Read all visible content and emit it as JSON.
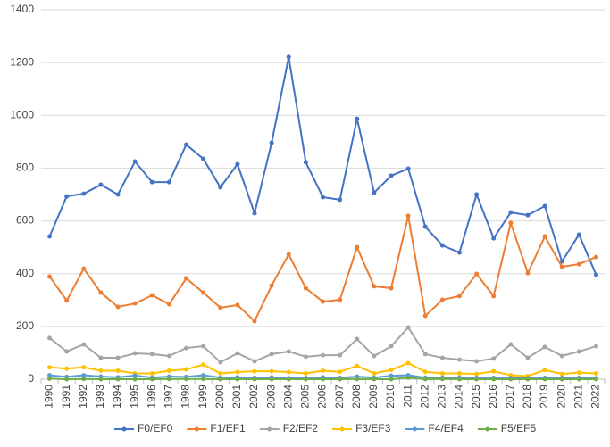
{
  "chart_data": {
    "type": "line",
    "categories": [
      "1990",
      "1991",
      "1992",
      "1993",
      "1994",
      "1995",
      "1996",
      "1997",
      "1998",
      "1999",
      "2000",
      "2001",
      "2002",
      "2003",
      "2004",
      "2005",
      "2006",
      "2007",
      "2008",
      "2009",
      "2010",
      "2011",
      "2012",
      "2013",
      "2014",
      "2015",
      "2016",
      "2017",
      "2018",
      "2019",
      "2020",
      "2021",
      "2022"
    ],
    "series": [
      {
        "name": "F0/EF0",
        "color": "#4472c4",
        "values": [
          541,
          693,
          703,
          737,
          700,
          825,
          747,
          747,
          889,
          835,
          727,
          815,
          629,
          896,
          1221,
          822,
          690,
          680,
          987,
          707,
          771,
          798,
          578,
          507,
          480,
          700,
          534,
          632,
          622,
          656,
          446,
          548,
          396
        ]
      },
      {
        "name": "F1/EF1",
        "color": "#ed7d31",
        "values": [
          389,
          298,
          419,
          328,
          274,
          287,
          318,
          284,
          382,
          328,
          271,
          281,
          220,
          355,
          473,
          345,
          294,
          301,
          500,
          352,
          345,
          619,
          240,
          301,
          315,
          399,
          315,
          592,
          402,
          541,
          426,
          436,
          463
        ]
      },
      {
        "name": "F2/EF2",
        "color": "#a5a5a5",
        "values": [
          156,
          105,
          132,
          81,
          81,
          98,
          95,
          88,
          118,
          125,
          64,
          98,
          68,
          95,
          105,
          85,
          91,
          91,
          152,
          88,
          125,
          196,
          95,
          81,
          74,
          68,
          78,
          132,
          81,
          122,
          88,
          105,
          125
        ]
      },
      {
        "name": "F3/EF3",
        "color": "#ffc000",
        "values": [
          45,
          40,
          45,
          32,
          32,
          22,
          22,
          32,
          37,
          55,
          22,
          27,
          30,
          30,
          27,
          22,
          32,
          28,
          50,
          22,
          35,
          61,
          28,
          22,
          22,
          20,
          30,
          15,
          12,
          35,
          20,
          25,
          22
        ]
      },
      {
        "name": "F4/EF4",
        "color": "#5b9bd5",
        "values": [
          15,
          9,
          15,
          10,
          7,
          14,
          6,
          10,
          9,
          15,
          6,
          7,
          6,
          7,
          4,
          5,
          7,
          5,
          10,
          6,
          13,
          15,
          6,
          6,
          6,
          5,
          5,
          5,
          4,
          5,
          5,
          5,
          4
        ]
      },
      {
        "name": "F5/EF5",
        "color": "#70ad47",
        "values": [
          2,
          0,
          1,
          0,
          0,
          0,
          0,
          1,
          1,
          1,
          0,
          0,
          0,
          0,
          0,
          0,
          0,
          0,
          1,
          0,
          0,
          6,
          0,
          1,
          0,
          0,
          0,
          0,
          0,
          0,
          0,
          0,
          0
        ]
      }
    ],
    "ylim": [
      0,
      1400
    ],
    "yticks": [
      0,
      200,
      400,
      600,
      800,
      1000,
      1200,
      1400
    ],
    "grid": true,
    "legend": "bottom"
  }
}
